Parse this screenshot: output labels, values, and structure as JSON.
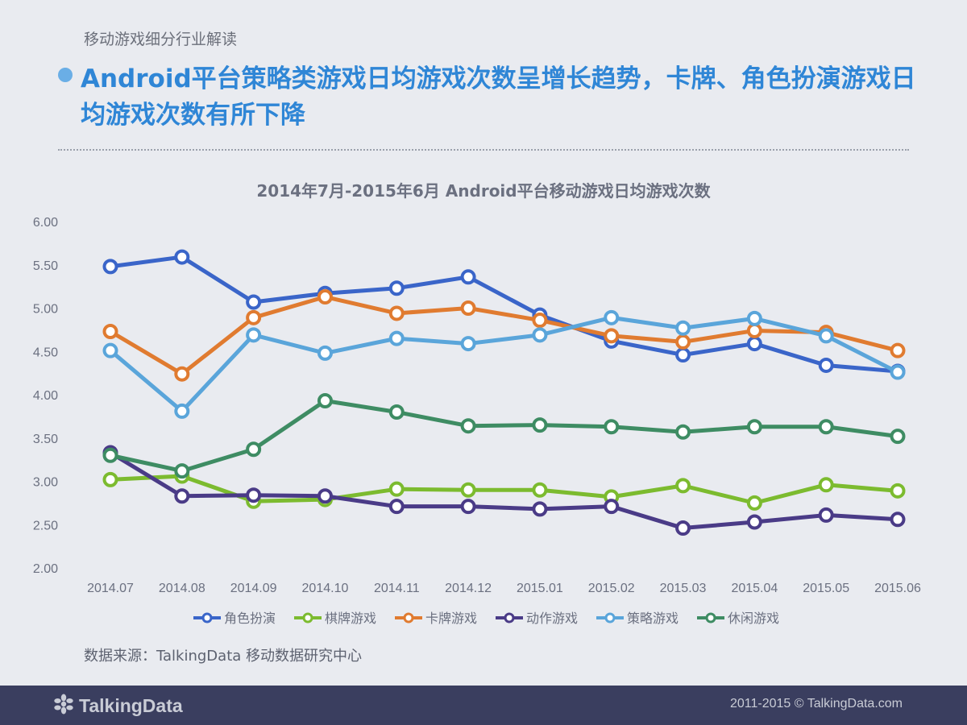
{
  "header": {
    "section_label": "移动游戏细分行业解读",
    "headline": "Android平台策略类游戏日均游戏次数呈增长趋势，卡牌、角色扮演游戏日均游戏次数有所下降"
  },
  "chart_data": {
    "type": "line",
    "title": "2014年7月-2015年6月 Android平台移动游戏日均游戏次数",
    "xlabel": "",
    "ylabel": "",
    "ylim": [
      2.0,
      6.0
    ],
    "yticks": [
      "2.00",
      "2.50",
      "3.00",
      "3.50",
      "4.00",
      "4.50",
      "5.00",
      "5.50",
      "6.00"
    ],
    "grid": false,
    "legend_position": "bottom",
    "categories": [
      "2014.07",
      "2014.08",
      "2014.09",
      "2014.10",
      "2014.11",
      "2014.12",
      "2015.01",
      "2015.02",
      "2015.03",
      "2015.04",
      "2015.05",
      "2015.06"
    ],
    "series": [
      {
        "name": "角色扮演",
        "color": "#3a65c9",
        "values": [
          5.48,
          5.59,
          5.07,
          5.17,
          5.23,
          5.36,
          4.92,
          4.62,
          4.46,
          4.59,
          4.34,
          4.27
        ]
      },
      {
        "name": "棋牌游戏",
        "color": "#7cbb2f",
        "values": [
          3.02,
          3.06,
          2.77,
          2.79,
          2.91,
          2.9,
          2.9,
          2.82,
          2.95,
          2.75,
          2.96,
          2.89
        ]
      },
      {
        "name": "卡牌游戏",
        "color": "#e07b30",
        "values": [
          4.73,
          4.24,
          4.89,
          5.13,
          4.94,
          5.0,
          4.86,
          4.68,
          4.61,
          4.74,
          4.72,
          4.51
        ]
      },
      {
        "name": "动作游戏",
        "color": "#4a3b87",
        "values": [
          3.33,
          2.83,
          2.84,
          2.83,
          2.71,
          2.71,
          2.68,
          2.71,
          2.46,
          2.53,
          2.61,
          2.56
        ]
      },
      {
        "name": "策略游戏",
        "color": "#5aa5da",
        "values": [
          4.51,
          3.81,
          4.69,
          4.48,
          4.65,
          4.59,
          4.69,
          4.89,
          4.77,
          4.88,
          4.68,
          4.26
        ]
      },
      {
        "name": "休闲游戏",
        "color": "#3e8c63",
        "values": [
          3.3,
          3.12,
          3.37,
          3.93,
          3.8,
          3.64,
          3.65,
          3.63,
          3.57,
          3.63,
          3.63,
          3.52
        ]
      }
    ]
  },
  "source_text": "数据来源：TalkingData 移动数据研究中心",
  "footer": {
    "logo_text": "TalkingData",
    "logo_icon": "talkingdata-logo-icon",
    "copyright": "2011-2015 © TalkingData.com"
  },
  "colors": {
    "headline": "#2f86d6",
    "footer_bg": "#3a3e5f",
    "page_bg": "#e9ebf0"
  }
}
